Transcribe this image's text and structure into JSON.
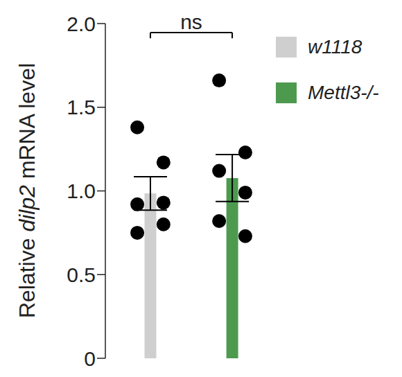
{
  "chart_data": {
    "type": "bar",
    "ylabel": "Relative dilp2 mRNA level",
    "categories": [
      "w1118",
      "Mettl3-/-"
    ],
    "values": [
      0.985,
      1.077
    ],
    "errors": [
      0.1,
      0.14
    ],
    "points": [
      [
        1.38,
        1.17,
        0.92,
        0.93,
        0.75,
        0.8
      ],
      [
        1.66,
        1.23,
        1.12,
        0.99,
        0.82,
        0.73
      ]
    ],
    "colors": [
      "#cfcfcf",
      "#4d9a4f"
    ],
    "ylim": [
      0,
      2
    ],
    "yticks": [
      0,
      0.5,
      {
        "value": 1,
        "label": "1.0"
      },
      1.5,
      {
        "value": 2,
        "label": "2.0"
      }
    ],
    "legend": "upper right",
    "tick_labels": "y",
    "annotations": [
      {
        "text": "ns",
        "between": [
          "w1118",
          "Mettl3-/-"
        ]
      }
    ]
  }
}
